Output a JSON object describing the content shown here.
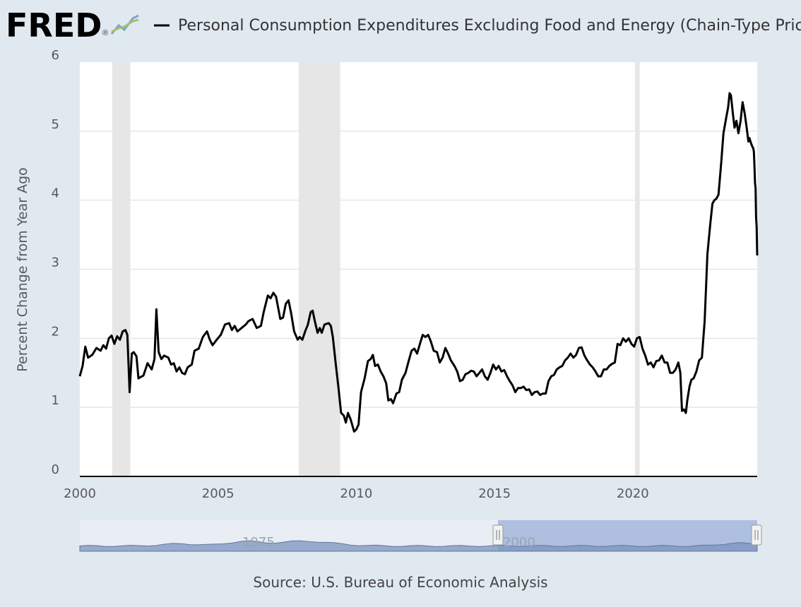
{
  "header": {
    "logo_text": "FRED",
    "logo_mark": "®",
    "logo_icon": "line-chart-icon",
    "series_title": "Personal Consumption Expenditures Excluding Food and Energy (Chain-Type Price Inc"
  },
  "footer": {
    "source": "Source: U.S. Bureau of Economic Analysis"
  },
  "colors": {
    "background": "#e1e9f0",
    "plot_background": "#ffffff",
    "series_line": "#000000",
    "recession_band": "#e6e6e6",
    "gridline": "#e6e6e6",
    "navigator_area": "#7b93bd",
    "navigator_selection": "#aebfe0"
  },
  "navigator": {
    "labels": [
      "1975",
      "2000"
    ]
  },
  "chart_data": {
    "type": "line",
    "title": "Personal Consumption Expenditures Excluding Food and Energy (Chain-Type Price Inc",
    "xlabel": "",
    "ylabel": "Percent Change from Year Ago",
    "xlim": [
      2000.0,
      2024.5
    ],
    "ylim": [
      0,
      6
    ],
    "x_ticks": [
      2000,
      2005,
      2010,
      2015,
      2020
    ],
    "y_ticks": [
      0,
      1,
      2,
      3,
      4,
      5,
      6
    ],
    "grid": true,
    "legend": "top",
    "recessions": [
      [
        2001.17,
        2001.83
      ],
      [
        2007.92,
        2009.42
      ],
      [
        2020.08,
        2020.25
      ]
    ],
    "series": [
      {
        "name": "Personal Consumption Expenditures Excluding Food and Energy (Chain-Type Price Inc",
        "points": [
          [
            2000.0,
            1.45
          ],
          [
            2000.1,
            1.6
          ],
          [
            2000.2,
            1.88
          ],
          [
            2000.3,
            1.72
          ],
          [
            2000.45,
            1.76
          ],
          [
            2000.6,
            1.86
          ],
          [
            2000.75,
            1.82
          ],
          [
            2000.85,
            1.9
          ],
          [
            2000.95,
            1.85
          ],
          [
            2001.05,
            2.0
          ],
          [
            2001.15,
            2.04
          ],
          [
            2001.25,
            1.92
          ],
          [
            2001.35,
            2.03
          ],
          [
            2001.45,
            1.98
          ],
          [
            2001.55,
            2.1
          ],
          [
            2001.65,
            2.12
          ],
          [
            2001.72,
            2.05
          ],
          [
            2001.8,
            1.22
          ],
          [
            2001.88,
            1.78
          ],
          [
            2001.95,
            1.8
          ],
          [
            2002.05,
            1.74
          ],
          [
            2002.12,
            1.42
          ],
          [
            2002.2,
            1.44
          ],
          [
            2002.3,
            1.46
          ],
          [
            2002.45,
            1.64
          ],
          [
            2002.6,
            1.55
          ],
          [
            2002.7,
            1.7
          ],
          [
            2002.77,
            2.42
          ],
          [
            2002.85,
            1.8
          ],
          [
            2002.95,
            1.7
          ],
          [
            2003.05,
            1.75
          ],
          [
            2003.2,
            1.72
          ],
          [
            2003.3,
            1.62
          ],
          [
            2003.4,
            1.64
          ],
          [
            2003.5,
            1.52
          ],
          [
            2003.6,
            1.58
          ],
          [
            2003.7,
            1.5
          ],
          [
            2003.8,
            1.48
          ],
          [
            2003.9,
            1.58
          ],
          [
            2004.05,
            1.62
          ],
          [
            2004.15,
            1.82
          ],
          [
            2004.3,
            1.85
          ],
          [
            2004.45,
            2.02
          ],
          [
            2004.6,
            2.1
          ],
          [
            2004.7,
            1.98
          ],
          [
            2004.8,
            1.9
          ],
          [
            2004.95,
            1.98
          ],
          [
            2005.1,
            2.05
          ],
          [
            2005.25,
            2.2
          ],
          [
            2005.4,
            2.22
          ],
          [
            2005.5,
            2.12
          ],
          [
            2005.6,
            2.18
          ],
          [
            2005.7,
            2.1
          ],
          [
            2005.85,
            2.15
          ],
          [
            2006.0,
            2.2
          ],
          [
            2006.1,
            2.25
          ],
          [
            2006.25,
            2.28
          ],
          [
            2006.4,
            2.15
          ],
          [
            2006.55,
            2.18
          ],
          [
            2006.65,
            2.38
          ],
          [
            2006.8,
            2.62
          ],
          [
            2006.9,
            2.58
          ],
          [
            2007.0,
            2.66
          ],
          [
            2007.1,
            2.6
          ],
          [
            2007.25,
            2.28
          ],
          [
            2007.35,
            2.3
          ],
          [
            2007.45,
            2.5
          ],
          [
            2007.55,
            2.55
          ],
          [
            2007.65,
            2.35
          ],
          [
            2007.75,
            2.1
          ],
          [
            2007.88,
            1.98
          ],
          [
            2007.95,
            2.02
          ],
          [
            2008.05,
            1.98
          ],
          [
            2008.15,
            2.1
          ],
          [
            2008.25,
            2.2
          ],
          [
            2008.35,
            2.38
          ],
          [
            2008.42,
            2.4
          ],
          [
            2008.5,
            2.25
          ],
          [
            2008.6,
            2.08
          ],
          [
            2008.68,
            2.15
          ],
          [
            2008.75,
            2.08
          ],
          [
            2008.85,
            2.2
          ],
          [
            2009.0,
            2.22
          ],
          [
            2009.08,
            2.18
          ],
          [
            2009.15,
            2.02
          ],
          [
            2009.25,
            1.65
          ],
          [
            2009.35,
            1.3
          ],
          [
            2009.45,
            0.92
          ],
          [
            2009.55,
            0.88
          ],
          [
            2009.62,
            0.78
          ],
          [
            2009.7,
            0.92
          ],
          [
            2009.8,
            0.82
          ],
          [
            2009.92,
            0.65
          ],
          [
            2010.0,
            0.68
          ],
          [
            2010.08,
            0.75
          ],
          [
            2010.17,
            1.22
          ],
          [
            2010.3,
            1.42
          ],
          [
            2010.42,
            1.67
          ],
          [
            2010.52,
            1.7
          ],
          [
            2010.6,
            1.76
          ],
          [
            2010.68,
            1.6
          ],
          [
            2010.78,
            1.62
          ],
          [
            2010.88,
            1.52
          ],
          [
            2010.98,
            1.45
          ],
          [
            2011.08,
            1.35
          ],
          [
            2011.16,
            1.1
          ],
          [
            2011.25,
            1.12
          ],
          [
            2011.33,
            1.06
          ],
          [
            2011.45,
            1.2
          ],
          [
            2011.55,
            1.22
          ],
          [
            2011.65,
            1.4
          ],
          [
            2011.78,
            1.5
          ],
          [
            2011.9,
            1.68
          ],
          [
            2012.0,
            1.82
          ],
          [
            2012.1,
            1.85
          ],
          [
            2012.2,
            1.78
          ],
          [
            2012.3,
            1.92
          ],
          [
            2012.4,
            2.05
          ],
          [
            2012.5,
            2.02
          ],
          [
            2012.6,
            2.05
          ],
          [
            2012.7,
            1.95
          ],
          [
            2012.8,
            1.82
          ],
          [
            2012.92,
            1.8
          ],
          [
            2013.02,
            1.65
          ],
          [
            2013.12,
            1.72
          ],
          [
            2013.22,
            1.86
          ],
          [
            2013.32,
            1.78
          ],
          [
            2013.42,
            1.68
          ],
          [
            2013.55,
            1.6
          ],
          [
            2013.65,
            1.52
          ],
          [
            2013.75,
            1.38
          ],
          [
            2013.85,
            1.4
          ],
          [
            2013.95,
            1.48
          ],
          [
            2014.05,
            1.5
          ],
          [
            2014.15,
            1.53
          ],
          [
            2014.25,
            1.52
          ],
          [
            2014.35,
            1.45
          ],
          [
            2014.45,
            1.5
          ],
          [
            2014.55,
            1.55
          ],
          [
            2014.65,
            1.45
          ],
          [
            2014.75,
            1.4
          ],
          [
            2014.85,
            1.5
          ],
          [
            2014.95,
            1.62
          ],
          [
            2015.05,
            1.55
          ],
          [
            2015.15,
            1.6
          ],
          [
            2015.25,
            1.52
          ],
          [
            2015.35,
            1.54
          ],
          [
            2015.45,
            1.45
          ],
          [
            2015.55,
            1.38
          ],
          [
            2015.65,
            1.32
          ],
          [
            2015.75,
            1.22
          ],
          [
            2015.85,
            1.28
          ],
          [
            2015.95,
            1.28
          ],
          [
            2016.05,
            1.3
          ],
          [
            2016.15,
            1.25
          ],
          [
            2016.25,
            1.26
          ],
          [
            2016.35,
            1.18
          ],
          [
            2016.45,
            1.22
          ],
          [
            2016.55,
            1.23
          ],
          [
            2016.65,
            1.18
          ],
          [
            2016.75,
            1.2
          ],
          [
            2016.85,
            1.2
          ],
          [
            2016.95,
            1.38
          ],
          [
            2017.05,
            1.45
          ],
          [
            2017.15,
            1.47
          ],
          [
            2017.25,
            1.55
          ],
          [
            2017.35,
            1.58
          ],
          [
            2017.45,
            1.6
          ],
          [
            2017.55,
            1.68
          ],
          [
            2017.65,
            1.72
          ],
          [
            2017.75,
            1.78
          ],
          [
            2017.85,
            1.72
          ],
          [
            2017.95,
            1.76
          ],
          [
            2018.05,
            1.86
          ],
          [
            2018.15,
            1.87
          ],
          [
            2018.25,
            1.75
          ],
          [
            2018.35,
            1.68
          ],
          [
            2018.45,
            1.62
          ],
          [
            2018.55,
            1.58
          ],
          [
            2018.65,
            1.52
          ],
          [
            2018.75,
            1.45
          ],
          [
            2018.85,
            1.45
          ],
          [
            2018.95,
            1.55
          ],
          [
            2019.05,
            1.55
          ],
          [
            2019.15,
            1.6
          ],
          [
            2019.25,
            1.63
          ],
          [
            2019.35,
            1.65
          ],
          [
            2019.45,
            1.92
          ],
          [
            2019.55,
            1.9
          ],
          [
            2019.65,
            2.0
          ],
          [
            2019.75,
            1.95
          ],
          [
            2019.85,
            2.0
          ],
          [
            2019.95,
            1.92
          ],
          [
            2020.05,
            1.88
          ],
          [
            2020.15,
            2.0
          ],
          [
            2020.25,
            2.02
          ],
          [
            2020.35,
            1.85
          ],
          [
            2020.45,
            1.75
          ],
          [
            2020.55,
            1.62
          ],
          [
            2020.65,
            1.65
          ],
          [
            2020.75,
            1.58
          ],
          [
            2020.85,
            1.67
          ],
          [
            2020.95,
            1.68
          ],
          [
            2021.05,
            1.75
          ],
          [
            2021.15,
            1.65
          ],
          [
            2021.25,
            1.65
          ],
          [
            2021.35,
            1.5
          ],
          [
            2021.45,
            1.5
          ],
          [
            2021.55,
            1.55
          ],
          [
            2021.65,
            1.65
          ],
          [
            2021.72,
            1.5
          ],
          [
            2021.78,
            0.95
          ],
          [
            2021.85,
            0.97
          ],
          [
            2021.92,
            0.92
          ],
          [
            2021.97,
            1.1
          ],
          [
            2022.05,
            1.3
          ],
          [
            2022.12,
            1.4
          ],
          [
            2022.2,
            1.42
          ],
          [
            2022.3,
            1.52
          ],
          [
            2022.4,
            1.68
          ],
          [
            2022.5,
            1.72
          ],
          [
            2022.6,
            2.25
          ],
          [
            2022.7,
            3.22
          ],
          [
            2022.8,
            3.65
          ],
          [
            2022.88,
            3.95
          ],
          [
            2022.95,
            4.0
          ],
          [
            2023.02,
            4.02
          ],
          [
            2023.1,
            4.08
          ],
          [
            2023.2,
            4.55
          ],
          [
            2023.28,
            4.97
          ],
          [
            2023.38,
            5.2
          ],
          [
            2023.45,
            5.35
          ],
          [
            2023.5,
            5.55
          ],
          [
            2023.55,
            5.52
          ],
          [
            2023.62,
            5.25
          ],
          [
            2023.68,
            5.05
          ],
          [
            2023.75,
            5.15
          ],
          [
            2023.82,
            4.97
          ],
          [
            2023.9,
            5.15
          ],
          [
            2023.97,
            5.42
          ],
          [
            2024.05,
            5.25
          ],
          [
            2024.12,
            5.05
          ],
          [
            2024.18,
            4.85
          ],
          [
            2024.22,
            4.9
          ],
          [
            2024.28,
            4.82
          ],
          [
            2024.32,
            4.78
          ],
          [
            2024.36,
            4.75
          ],
          [
            2024.38,
            4.7
          ],
          [
            2024.4,
            4.5
          ],
          [
            2024.42,
            4.25
          ],
          [
            2024.44,
            4.18
          ],
          [
            2024.46,
            3.75
          ],
          [
            2024.48,
            3.62
          ],
          [
            2024.5,
            3.2
          ]
        ]
      }
    ]
  }
}
